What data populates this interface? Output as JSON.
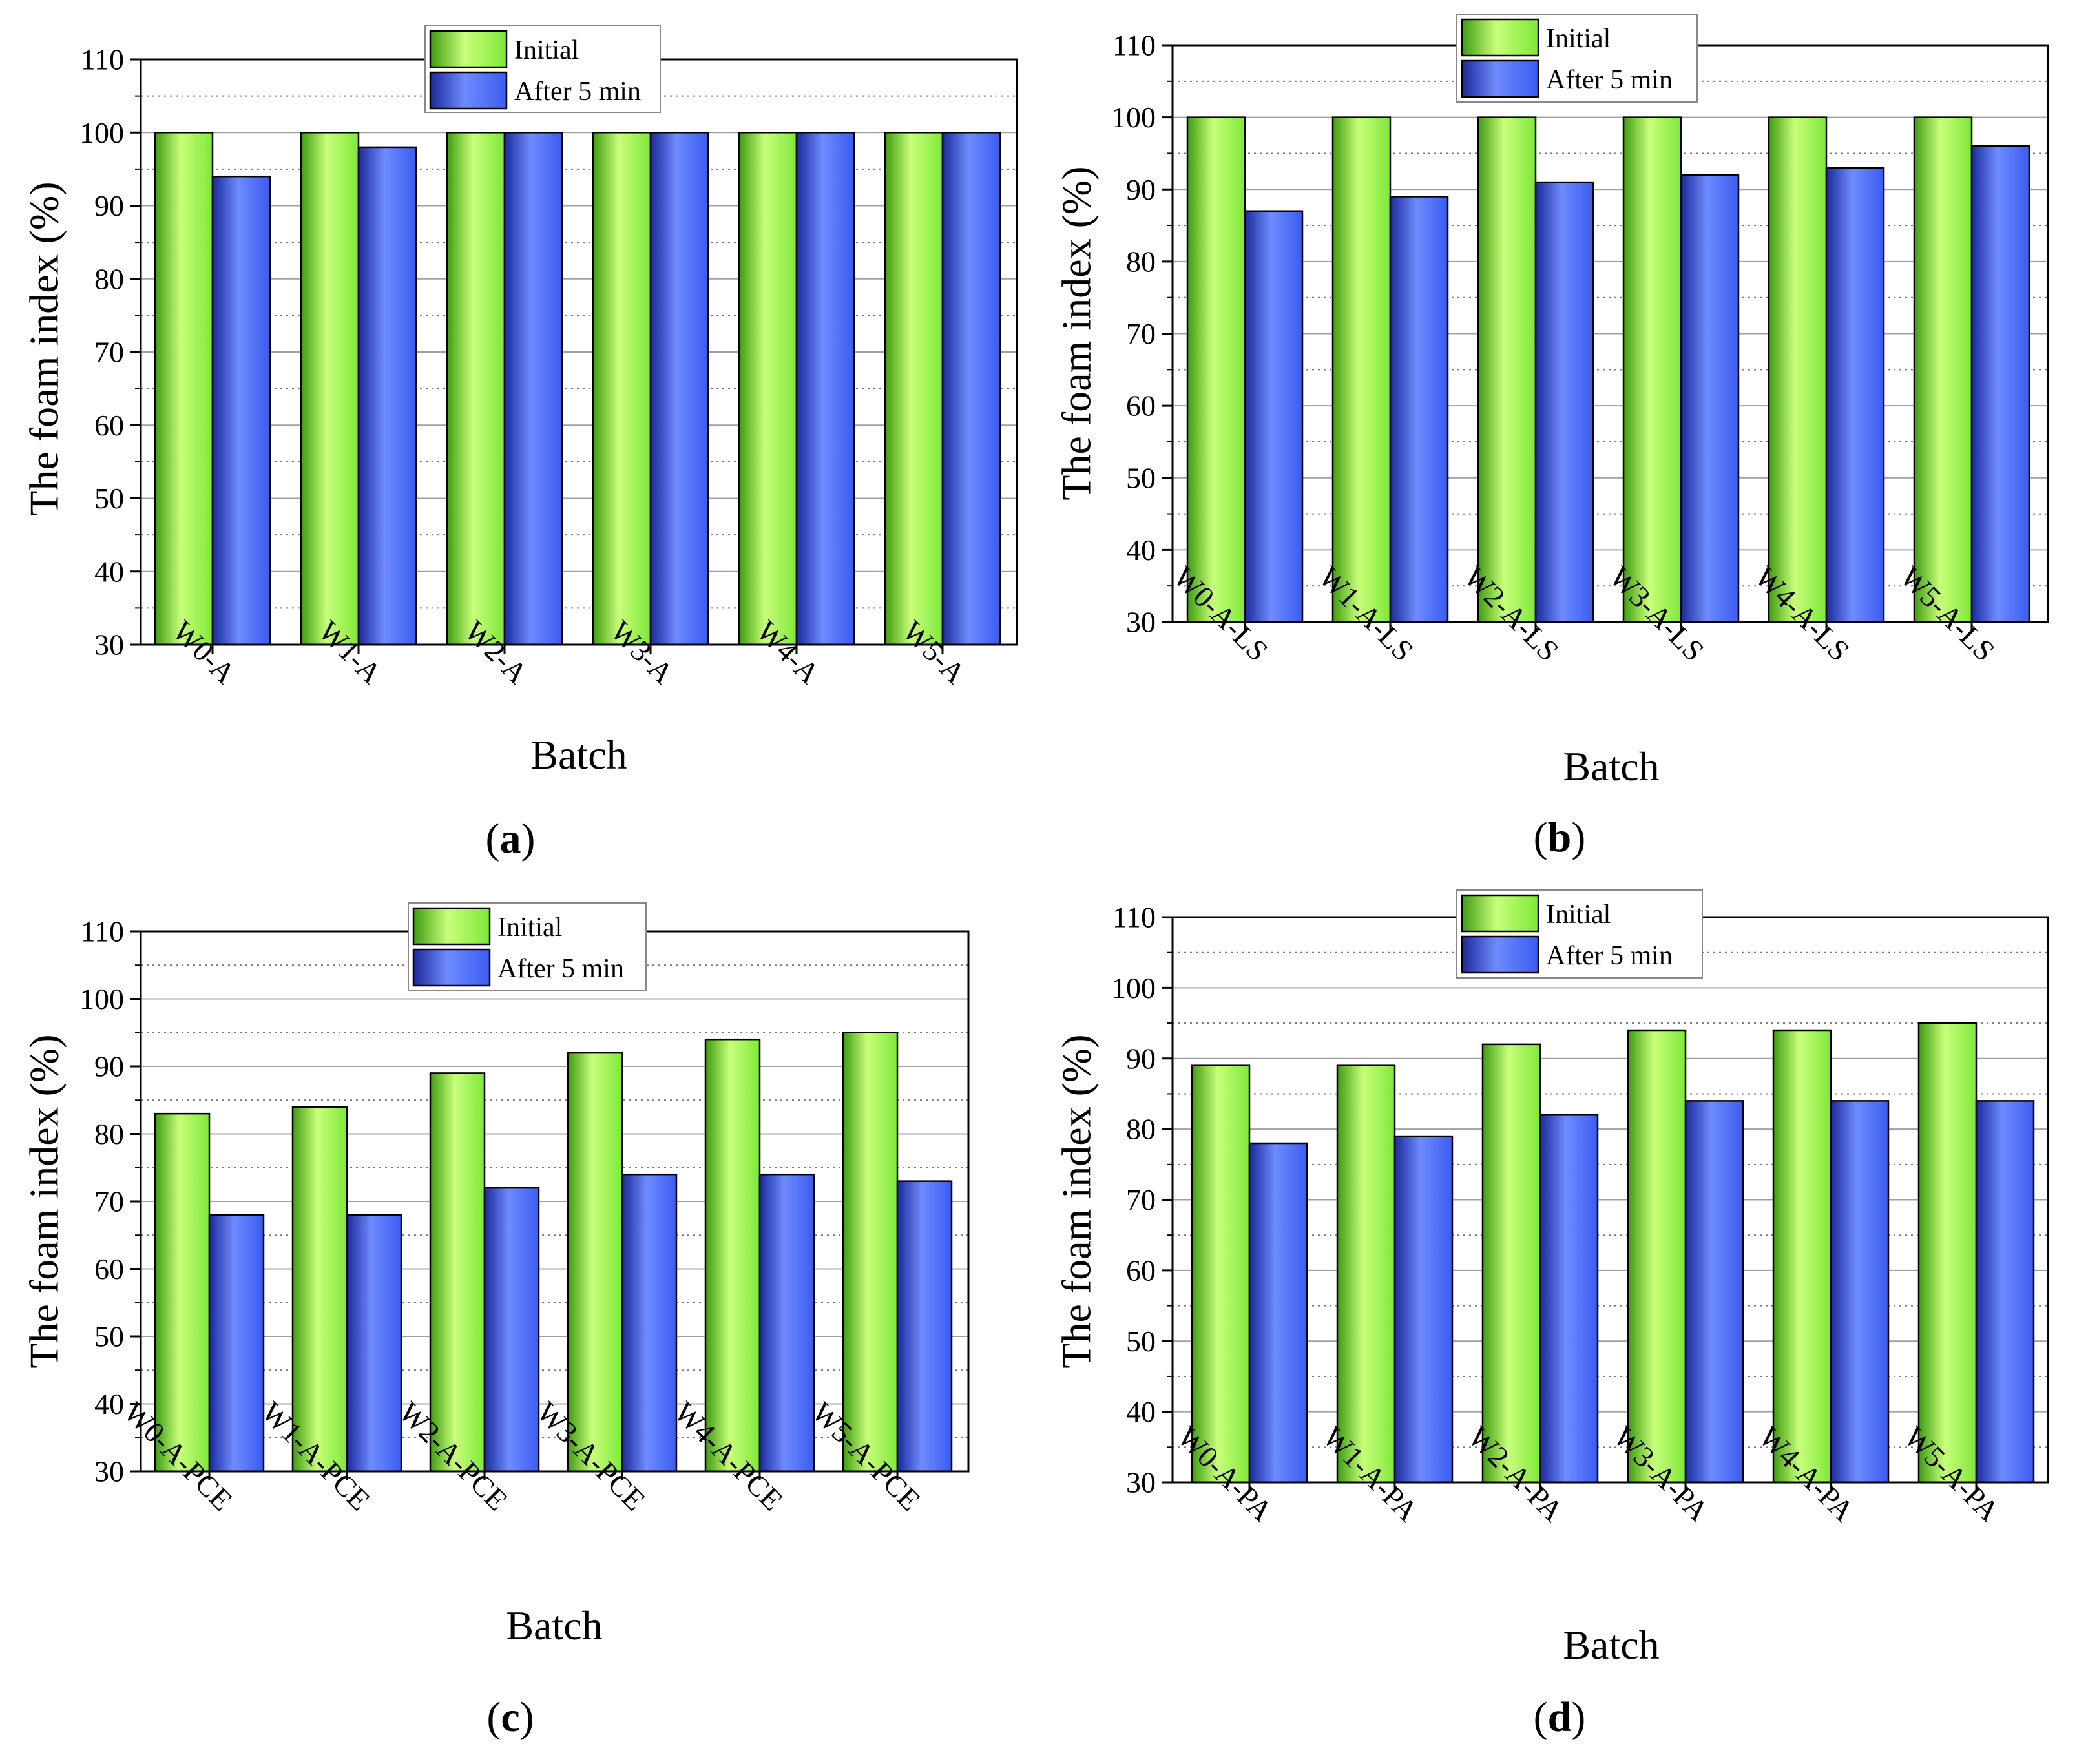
{
  "colors": {
    "initial_light": "#c8ff7a",
    "initial_mid": "#7ee83a",
    "initial_dark": "#3f9c10",
    "after_light": "#6f8bff",
    "after_mid": "#3a5cf0",
    "after_dark": "#1a2a9a",
    "grid": "#777777",
    "axis": "#000000"
  },
  "chart_data": [
    {
      "panel": "a",
      "type": "bar",
      "xlabel": "Batch",
      "ylabel": "The foam index (%)",
      "ylim": [
        30,
        110
      ],
      "yticks": [
        30,
        40,
        50,
        60,
        70,
        80,
        90,
        100,
        110
      ],
      "grid": true,
      "legend": "top-center",
      "categories": [
        "W0-A",
        "W1-A",
        "W2-A",
        "W3-A",
        "W4-A",
        "W5-A"
      ],
      "series": [
        {
          "name": "Initial",
          "values": [
            100,
            100,
            100,
            100,
            100,
            100
          ]
        },
        {
          "name": "After 5 min",
          "values": [
            94,
            98,
            100,
            100,
            100,
            100
          ]
        }
      ]
    },
    {
      "panel": "b",
      "type": "bar",
      "xlabel": "Batch",
      "ylabel": "The foam index (%)",
      "ylim": [
        30,
        110
      ],
      "yticks": [
        30,
        40,
        50,
        60,
        70,
        80,
        90,
        100,
        110
      ],
      "grid": true,
      "legend": "top-center",
      "categories": [
        "W0-A-LS",
        "W1-A-LS",
        "W2-A-LS",
        "W3-A-LS",
        "W4-A-LS",
        "W5-A-LS"
      ],
      "series": [
        {
          "name": "Initial",
          "values": [
            100,
            100,
            100,
            100,
            100,
            100
          ]
        },
        {
          "name": "After 5 min",
          "values": [
            87,
            89,
            91,
            92,
            93,
            96
          ]
        }
      ]
    },
    {
      "panel": "c",
      "type": "bar",
      "xlabel": "Batch",
      "ylabel": "The foam index (%)",
      "ylim": [
        30,
        110
      ],
      "yticks": [
        30,
        40,
        50,
        60,
        70,
        80,
        90,
        100,
        110
      ],
      "grid": true,
      "legend": "top-center",
      "categories": [
        "W0-A-PCE",
        "W1-A-PCE",
        "W2-A-PCE",
        "W3-A-PCE",
        "W4-A-PCE",
        "W5-A-PCE"
      ],
      "series": [
        {
          "name": "Initial",
          "values": [
            83,
            84,
            89,
            92,
            94,
            95
          ]
        },
        {
          "name": "After 5 min",
          "values": [
            68,
            68,
            72,
            74,
            74,
            73
          ]
        }
      ]
    },
    {
      "panel": "d",
      "type": "bar",
      "xlabel": "Batch",
      "ylabel": "The foam index (%)",
      "ylim": [
        30,
        110
      ],
      "yticks": [
        30,
        40,
        50,
        60,
        70,
        80,
        90,
        100,
        110
      ],
      "grid": true,
      "legend": "top-center",
      "categories": [
        "W0-A-PA",
        "W1-A-PA",
        "W2-A-PA",
        "W3-A-PA",
        "W4-A-PA",
        "W5-A-PA"
      ],
      "series": [
        {
          "name": "Initial",
          "values": [
            89,
            89,
            92,
            94,
            94,
            95
          ]
        },
        {
          "name": "After 5 min",
          "values": [
            78,
            79,
            82,
            84,
            84,
            84
          ]
        }
      ]
    }
  ]
}
